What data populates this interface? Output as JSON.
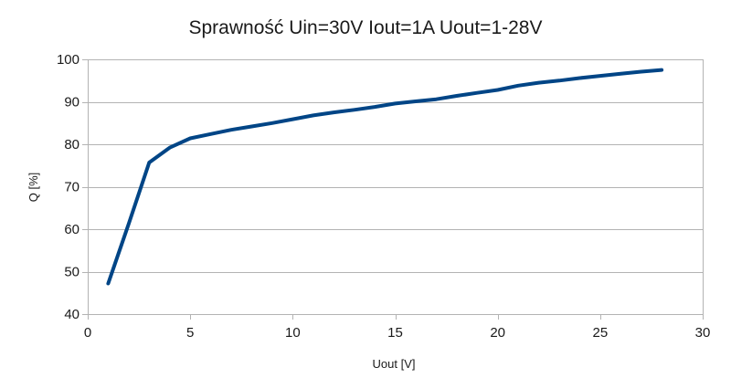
{
  "chart_data": {
    "type": "line",
    "title": "Sprawność Uin=30V Iout=1A Uout=1-28V",
    "xlabel": "Uout [V]",
    "ylabel": "Q [%]",
    "xlim": [
      0,
      30
    ],
    "ylim": [
      40,
      100
    ],
    "xticks": [
      0,
      5,
      10,
      15,
      20,
      25,
      30
    ],
    "yticks": [
      40,
      50,
      60,
      70,
      80,
      90,
      100
    ],
    "grid": true,
    "legend": "none",
    "series": [
      {
        "color": "#004586",
        "x": [
          1,
          2,
          3,
          4,
          5,
          6,
          7,
          8,
          9,
          10,
          11,
          12,
          13,
          14,
          15,
          16,
          17,
          18,
          19,
          20,
          21,
          22,
          23,
          24,
          25,
          26,
          27,
          28
        ],
        "y": [
          47.2,
          61.3,
          75.7,
          79.2,
          81.4,
          82.4,
          83.4,
          84.2,
          85.0,
          85.9,
          86.8,
          87.5,
          88.1,
          88.8,
          89.6,
          90.1,
          90.6,
          91.4,
          92.1,
          92.8,
          93.8,
          94.5,
          95.0,
          95.6,
          96.1,
          96.6,
          97.1,
          97.5
        ]
      }
    ]
  }
}
